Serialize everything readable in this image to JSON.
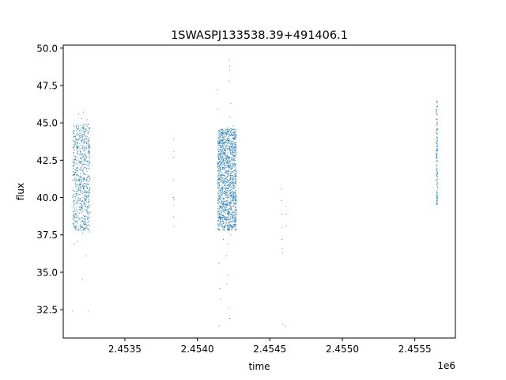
{
  "chart_data": {
    "type": "scatter",
    "title": "1SWASPJ133538.39+491406.1",
    "xlabel": "time",
    "ylabel": "flux",
    "x_offset_label": "1e6",
    "xlim": [
      2453075,
      2455780
    ],
    "ylim": [
      30.6,
      50.2
    ],
    "x_ticks": [
      2453500,
      2454000,
      2454500,
      2455000,
      2455500
    ],
    "x_tick_labels": [
      "2.4535",
      "2.4540",
      "2.4545",
      "2.4550",
      "2.4555"
    ],
    "y_ticks": [
      32.5,
      35.0,
      37.5,
      40.0,
      42.5,
      45.0,
      47.5,
      50.0
    ],
    "y_tick_labels": [
      "32.5",
      "35.0",
      "37.5",
      "40.0",
      "42.5",
      "45.0",
      "47.5",
      "50.0"
    ],
    "grid": false,
    "point_color": "#1f77b4",
    "series": [
      {
        "points": [
          [
            2453145,
            42.1
          ],
          [
            2453150,
            39.6
          ],
          [
            2453152,
            44.4
          ],
          [
            2453155,
            41.3
          ],
          [
            2453158,
            38.9
          ],
          [
            2453160,
            43.6
          ],
          [
            2453163,
            40.2
          ],
          [
            2453166,
            44.8
          ],
          [
            2453168,
            38.4
          ],
          [
            2453170,
            42.9
          ],
          [
            2453172,
            39.1
          ],
          [
            2453175,
            41.8
          ],
          [
            2453178,
            43.1
          ],
          [
            2453180,
            40.6
          ],
          [
            2453183,
            37.9
          ],
          [
            2453186,
            44.1
          ],
          [
            2453188,
            41.1
          ],
          [
            2453190,
            39.8
          ],
          [
            2453192,
            42.6
          ],
          [
            2453195,
            38.6
          ],
          [
            2453198,
            43.8
          ],
          [
            2453200,
            40.9
          ],
          [
            2453203,
            45.3
          ],
          [
            2453205,
            39.3
          ],
          [
            2453208,
            42.2
          ],
          [
            2453210,
            37.6
          ],
          [
            2453212,
            44.6
          ],
          [
            2453215,
            41.6
          ],
          [
            2453218,
            38.2
          ],
          [
            2453220,
            43.3
          ],
          [
            2453222,
            40.4
          ],
          [
            2453225,
            42.8
          ],
          [
            2453228,
            39.5
          ],
          [
            2453230,
            44.2
          ],
          [
            2453232,
            38.0
          ],
          [
            2453235,
            41.9
          ],
          [
            2453238,
            43.9
          ],
          [
            2453240,
            40.1
          ],
          [
            2453242,
            42.4
          ],
          [
            2453245,
            38.7
          ],
          [
            2453248,
            44.9
          ],
          [
            2453250,
            41.4
          ],
          [
            2453252,
            39.7
          ],
          [
            2453255,
            43.4
          ],
          [
            2453258,
            37.7
          ],
          [
            2453150,
            36.9
          ],
          [
            2453140,
            32.4
          ],
          [
            2453208,
            34.5
          ],
          [
            2453230,
            36.1
          ],
          [
            2453250,
            32.4
          ],
          [
            2453182,
            45.6
          ],
          [
            2453215,
            45.7
          ],
          [
            2453240,
            45.2
          ],
          [
            2453170,
            37.1
          ],
          [
            2453835,
            43.9
          ],
          [
            2453835,
            42.7
          ],
          [
            2453836,
            41.2
          ],
          [
            2453836,
            40.0
          ],
          [
            2453837,
            39.5
          ],
          [
            2453837,
            38.7
          ],
          [
            2453838,
            38.1
          ],
          [
            2453838,
            43.1
          ],
          [
            2453839,
            39.9
          ],
          [
            2454145,
            42.3
          ],
          [
            2454148,
            39.1
          ],
          [
            2454150,
            44.0
          ],
          [
            2454152,
            40.8
          ],
          [
            2454155,
            38.5
          ],
          [
            2454158,
            43.5
          ],
          [
            2454160,
            41.4
          ],
          [
            2454162,
            39.7
          ],
          [
            2454165,
            44.3
          ],
          [
            2454168,
            38.1
          ],
          [
            2454170,
            42.7
          ],
          [
            2454172,
            40.2
          ],
          [
            2454175,
            43.9
          ],
          [
            2454178,
            38.8
          ],
          [
            2454180,
            41.9
          ],
          [
            2454182,
            44.5
          ],
          [
            2454185,
            39.4
          ],
          [
            2454188,
            42.1
          ],
          [
            2454190,
            37.8
          ],
          [
            2454192,
            43.2
          ],
          [
            2454195,
            40.5
          ],
          [
            2454198,
            44.1
          ],
          [
            2454200,
            38.3
          ],
          [
            2454202,
            41.7
          ],
          [
            2454205,
            43.7
          ],
          [
            2454208,
            39.2
          ],
          [
            2454210,
            42.5
          ],
          [
            2454212,
            40.0
          ],
          [
            2454215,
            44.7
          ],
          [
            2454218,
            38.6
          ],
          [
            2454220,
            41.2
          ],
          [
            2454222,
            43.4
          ],
          [
            2454225,
            39.6
          ],
          [
            2454228,
            42.9
          ],
          [
            2454230,
            37.5
          ],
          [
            2454232,
            44.2
          ],
          [
            2454235,
            40.7
          ],
          [
            2454238,
            42.0
          ],
          [
            2454240,
            38.9
          ],
          [
            2454242,
            43.6
          ],
          [
            2454245,
            41.0
          ],
          [
            2454248,
            44.8
          ],
          [
            2454250,
            39.0
          ],
          [
            2454252,
            42.4
          ],
          [
            2454255,
            40.3
          ],
          [
            2454258,
            43.1
          ],
          [
            2454260,
            38.4
          ],
          [
            2454262,
            41.5
          ],
          [
            2454265,
            44.4
          ],
          [
            2454268,
            39.8
          ],
          [
            2454140,
            47.2
          ],
          [
            2454143,
            45.9
          ],
          [
            2454150,
            35.6
          ],
          [
            2454155,
            33.9
          ],
          [
            2454162,
            33.2
          ],
          [
            2454150,
            31.4
          ],
          [
            2454200,
            36.1
          ],
          [
            2454205,
            34.2
          ],
          [
            2454210,
            34.8
          ],
          [
            2454215,
            32.6
          ],
          [
            2454222,
            31.9
          ],
          [
            2454225,
            45.4
          ],
          [
            2454210,
            36.9
          ],
          [
            2454180,
            37.2
          ],
          [
            2454220,
            49.2
          ],
          [
            2454222,
            48.8
          ],
          [
            2454224,
            48.5
          ],
          [
            2454218,
            47.8
          ],
          [
            2454230,
            46.3
          ],
          [
            2454580,
            40.6
          ],
          [
            2454580,
            39.8
          ],
          [
            2454582,
            38.9
          ],
          [
            2454583,
            38.0
          ],
          [
            2454584,
            37.2
          ],
          [
            2454585,
            36.6
          ],
          [
            2454586,
            36.3
          ],
          [
            2454590,
            31.5
          ],
          [
            2454610,
            31.4
          ],
          [
            2454612,
            39.4
          ],
          [
            2454614,
            38.9
          ],
          [
            2454612,
            38.1
          ],
          [
            2455650,
            46.5
          ],
          [
            2455650,
            45.8
          ],
          [
            2455651,
            45.0
          ],
          [
            2455651,
            44.3
          ],
          [
            2455652,
            43.6
          ],
          [
            2455652,
            42.8
          ],
          [
            2455653,
            42.1
          ],
          [
            2455653,
            41.4
          ],
          [
            2455654,
            40.9
          ],
          [
            2455654,
            40.2
          ],
          [
            2455655,
            39.6
          ],
          [
            2455655,
            44.9
          ],
          [
            2455656,
            43.2
          ],
          [
            2455656,
            41.7
          ],
          [
            2455657,
            46.1
          ]
        ]
      }
    ]
  }
}
